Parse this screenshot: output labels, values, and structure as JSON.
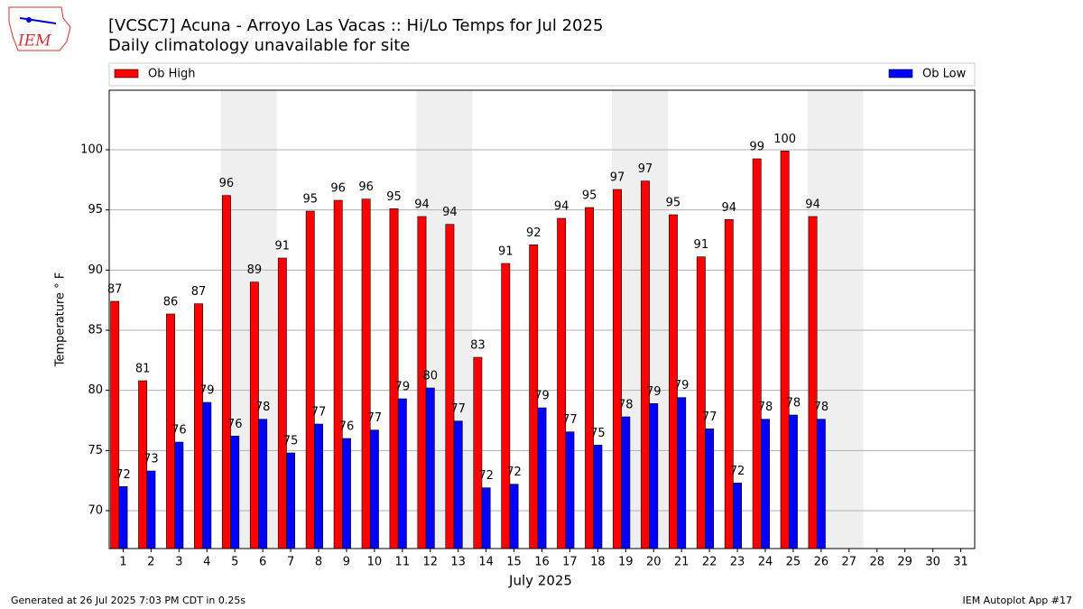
{
  "chart_data": {
    "type": "bar",
    "title": "[VCSC7] Acuna - Arroyo Las Vacas :: Hi/Lo Temps for Jul 2025",
    "subtitle": "Daily climatology unavailable for site",
    "logo_text": "IEM",
    "x_label": "July 2025",
    "y_label": "Temperature ° F",
    "footer_left": "Generated at 26 Jul 2025 7:03 PM CDT in 0.25s",
    "footer_right": "IEM Autoplot App #17",
    "categories": [
      "1",
      "2",
      "3",
      "4",
      "5",
      "6",
      "7",
      "8",
      "9",
      "10",
      "11",
      "12",
      "13",
      "14",
      "15",
      "16",
      "17",
      "18",
      "19",
      "20",
      "21",
      "22",
      "23",
      "24",
      "25",
      "26",
      "27",
      "28",
      "29",
      "30",
      "31"
    ],
    "series": [
      {
        "name": "Ob High",
        "color": "#ff0000",
        "values": [
          87.4,
          80.8,
          86.35,
          87.2,
          96.2,
          89.0,
          91.0,
          94.9,
          95.8,
          95.9,
          95.1,
          94.45,
          93.8,
          82.75,
          90.55,
          92.1,
          94.3,
          95.2,
          96.7,
          97.4,
          94.6,
          91.1,
          94.2,
          99.25,
          99.9,
          94.45,
          null,
          null,
          null,
          null,
          null
        ],
        "value_labels": [
          "87",
          "81",
          "86",
          "87",
          "96",
          "89",
          "91",
          "95",
          "96",
          "96",
          "95",
          "94",
          "94",
          "83",
          "91",
          "92",
          "94",
          "95",
          "97",
          "97",
          "95",
          "91",
          "94",
          "99",
          "100",
          "94",
          null,
          null,
          null,
          null,
          null
        ]
      },
      {
        "name": "Ob Low",
        "color": "#0000ff",
        "values": [
          72.0,
          73.3,
          75.7,
          79.0,
          76.2,
          77.6,
          74.8,
          77.2,
          76.0,
          76.7,
          79.3,
          80.2,
          77.45,
          71.9,
          72.2,
          78.55,
          76.55,
          75.45,
          77.8,
          78.9,
          79.4,
          76.8,
          72.3,
          77.6,
          77.95,
          77.6,
          null,
          null,
          null,
          null,
          null
        ],
        "value_labels": [
          "72",
          "73",
          "76",
          "79",
          "76",
          "78",
          "75",
          "77",
          "76",
          "77",
          "79",
          "80",
          "77",
          "72",
          "72",
          "79",
          "77",
          "75",
          "78",
          "79",
          "79",
          "77",
          "72",
          "78",
          "78",
          "78",
          null,
          null,
          null,
          null,
          null
        ]
      }
    ],
    "ylim": [
      66.85,
      104.95
    ],
    "yticks": [
      70,
      75,
      80,
      85,
      90,
      95,
      100
    ],
    "grid": true,
    "legend": "top"
  }
}
